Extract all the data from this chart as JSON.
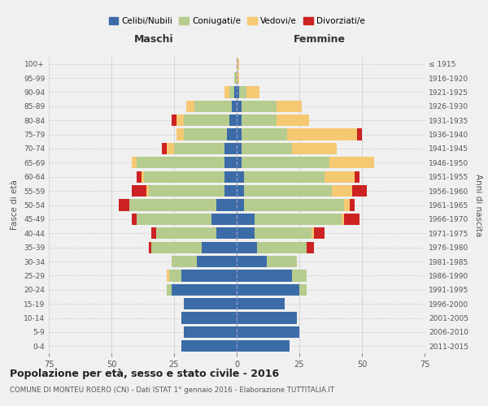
{
  "age_groups": [
    "0-4",
    "5-9",
    "10-14",
    "15-19",
    "20-24",
    "25-29",
    "30-34",
    "35-39",
    "40-44",
    "45-49",
    "50-54",
    "55-59",
    "60-64",
    "65-69",
    "70-74",
    "75-79",
    "80-84",
    "85-89",
    "90-94",
    "95-99",
    "100+"
  ],
  "birth_years": [
    "2011-2015",
    "2006-2010",
    "2001-2005",
    "1996-2000",
    "1991-1995",
    "1986-1990",
    "1981-1985",
    "1976-1980",
    "1971-1975",
    "1966-1970",
    "1961-1965",
    "1956-1960",
    "1951-1955",
    "1946-1950",
    "1941-1945",
    "1936-1940",
    "1931-1935",
    "1926-1930",
    "1921-1925",
    "1916-1920",
    "≤ 1915"
  ],
  "colors": {
    "celibe": "#3b6ca8",
    "coniugato": "#b5cc8e",
    "vedovo": "#f5c872",
    "divorziato": "#cc2222"
  },
  "maschi": {
    "celibe": [
      22,
      21,
      22,
      21,
      26,
      22,
      16,
      14,
      8,
      10,
      8,
      5,
      5,
      5,
      5,
      4,
      3,
      2,
      1,
      0,
      0
    ],
    "coniugato": [
      0,
      0,
      0,
      0,
      2,
      5,
      10,
      20,
      24,
      30,
      35,
      30,
      32,
      35,
      20,
      17,
      18,
      15,
      2,
      1,
      0
    ],
    "vedovo": [
      0,
      0,
      0,
      0,
      0,
      1,
      0,
      0,
      0,
      0,
      0,
      1,
      1,
      2,
      3,
      3,
      3,
      3,
      2,
      0,
      0
    ],
    "divorziato": [
      0,
      0,
      0,
      0,
      0,
      0,
      0,
      1,
      2,
      2,
      4,
      6,
      2,
      0,
      2,
      0,
      2,
      0,
      0,
      0,
      0
    ]
  },
  "femmine": {
    "nubile": [
      21,
      25,
      24,
      19,
      25,
      22,
      12,
      8,
      7,
      7,
      3,
      3,
      3,
      2,
      2,
      2,
      2,
      2,
      1,
      0,
      0
    ],
    "coniugata": [
      0,
      0,
      0,
      0,
      3,
      6,
      12,
      20,
      23,
      35,
      40,
      35,
      32,
      35,
      20,
      18,
      14,
      14,
      3,
      0,
      0
    ],
    "vedova": [
      0,
      0,
      0,
      0,
      0,
      0,
      0,
      0,
      1,
      1,
      2,
      8,
      12,
      18,
      18,
      28,
      13,
      10,
      5,
      1,
      1
    ],
    "divorziata": [
      0,
      0,
      0,
      0,
      0,
      0,
      0,
      3,
      4,
      6,
      2,
      6,
      2,
      0,
      0,
      2,
      0,
      0,
      0,
      0,
      0
    ]
  },
  "xlim": 75,
  "title": "Popolazione per età, sesso e stato civile - 2016",
  "subtitle": "COMUNE DI MONTEU ROERO (CN) - Dati ISTAT 1° gennaio 2016 - Elaborazione TUTTITALIA.IT",
  "ylabel_left": "Fasce di età",
  "ylabel_right": "Anni di nascita",
  "xlabel_maschi": "Maschi",
  "xlabel_femmine": "Femmine",
  "bg_color": "#f0f0f0",
  "grid_color": "#cccccc"
}
